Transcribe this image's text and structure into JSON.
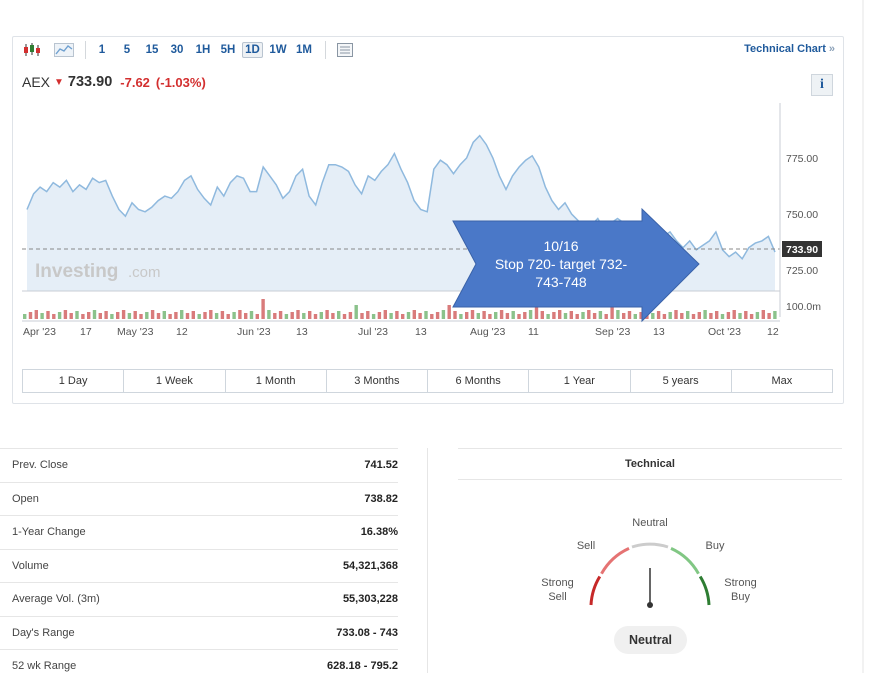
{
  "toolbar": {
    "intervals": [
      "1",
      "5",
      "15",
      "30",
      "1H",
      "5H",
      "1D",
      "1W",
      "1M"
    ],
    "active_interval": "1D",
    "technical_chart_label": "Technical Chart",
    "chevron": "»"
  },
  "quote": {
    "symbol": "AEX",
    "direction_icon": "down-arrow-icon",
    "price": "733.90",
    "change": "-7.62",
    "change_pct": "(-1.03%)",
    "down_color": "#d32f2f"
  },
  "chart": {
    "watermark": "Investing",
    "watermark_suffix": ".com",
    "y_ticks": [
      "775.00",
      "750.00",
      "725.00"
    ],
    "last_price_tag": "733.90",
    "volume_tick": "100.0m",
    "x_ticks": [
      "Apr '23",
      "17",
      "May '23",
      "12",
      "Jun '23",
      "13",
      "Jul '23",
      "13",
      "Aug '23",
      "11",
      "Sep '23",
      "13",
      "Oct '23",
      "12"
    ],
    "line_color": "#8fb9de",
    "area_color": "#e5eef7"
  },
  "callout": {
    "line1": "10/16",
    "line2": "Stop 720- target 732-",
    "line3": "743-748",
    "color": "#4a78c8"
  },
  "ranges": [
    "1 Day",
    "1 Week",
    "1 Month",
    "3 Months",
    "6 Months",
    "1 Year",
    "5 years",
    "Max"
  ],
  "stats": [
    {
      "label": "Prev. Close",
      "value": "741.52"
    },
    {
      "label": "Open",
      "value": "738.82"
    },
    {
      "label": "1-Year Change",
      "value": "16.38%"
    },
    {
      "label": "Volume",
      "value": "54,321,368"
    },
    {
      "label": "Average Vol. (3m)",
      "value": "55,303,228"
    },
    {
      "label": "Day's Range",
      "value": "733.08 - 743"
    },
    {
      "label": "52 wk Range",
      "value": "628.18 - 795.2"
    }
  ],
  "technical": {
    "title": "Technical",
    "labels": {
      "neutral": "Neutral",
      "sell": "Sell",
      "buy": "Buy",
      "strong_sell": "Strong\nSell",
      "strong_buy": "Strong\nBuy"
    },
    "summary": "Neutral",
    "colors": {
      "strong_sell": "#c62828",
      "sell": "#e57373",
      "neutral": "#cccccc",
      "buy": "#81c784",
      "strong_buy": "#2e7d32"
    }
  }
}
